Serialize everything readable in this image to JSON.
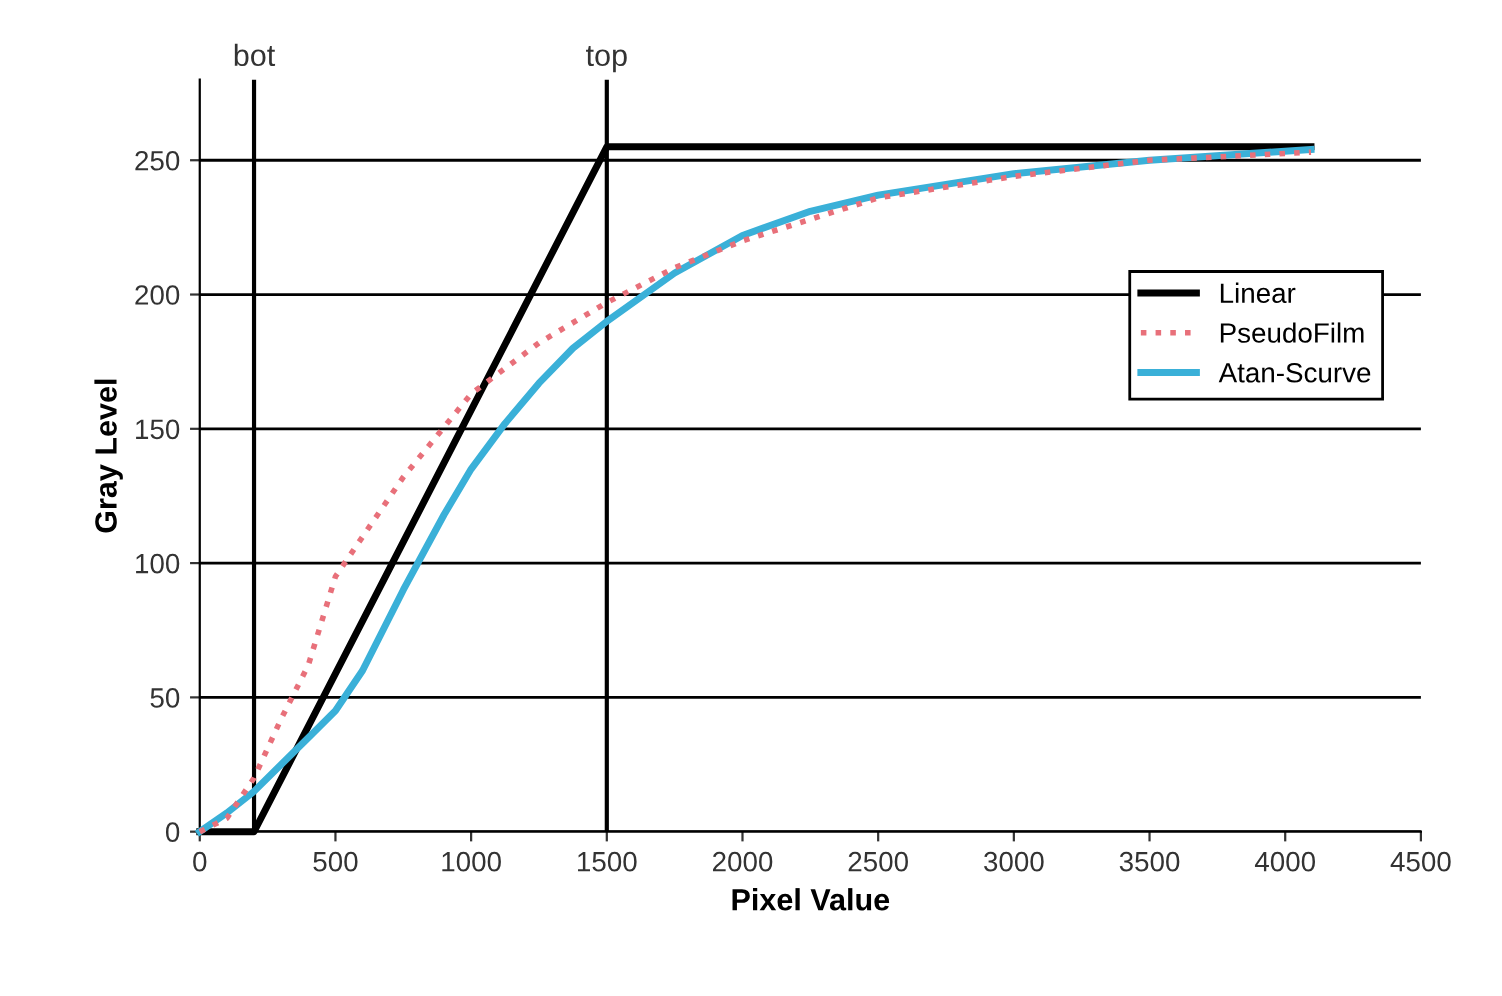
{
  "chart_data": {
    "type": "line",
    "xlabel": "Pixel Value",
    "ylabel": "Gray Level",
    "xlim": [
      0,
      4500
    ],
    "xticks": [
      0,
      500,
      1000,
      1500,
      2000,
      2500,
      3000,
      3500,
      4000,
      4500
    ],
    "ylim": [
      0,
      280
    ],
    "yticks": [
      0,
      50,
      100,
      150,
      200,
      250
    ],
    "grid": "y",
    "legend": "right",
    "series": [
      {
        "name": "Linear",
        "color": "#000000",
        "line_style": "solid",
        "x": [
          0,
          200,
          1500,
          4095
        ],
        "values": [
          0,
          0,
          255,
          255
        ]
      },
      {
        "name": "PseudoFilm",
        "color": "#e8707a",
        "line_style": "dotted",
        "x": [
          0,
          100,
          200,
          300,
          400,
          500,
          750,
          1000,
          1250,
          1500,
          1750,
          2000,
          2500,
          3000,
          3500,
          4095
        ],
        "values": [
          0,
          5,
          20,
          42,
          62,
          95,
          132,
          163,
          182,
          197,
          210,
          220,
          236,
          244,
          250,
          253
        ]
      },
      {
        "name": "Atan-Scurve",
        "color": "#3ab0d8",
        "line_style": "solid",
        "x": [
          0,
          100,
          200,
          300,
          400,
          500,
          600,
          750,
          900,
          1000,
          1125,
          1250,
          1375,
          1500,
          1750,
          2000,
          2250,
          2500,
          3000,
          3500,
          4095
        ],
        "values": [
          0,
          7,
          15,
          25,
          35,
          45,
          60,
          90,
          118,
          135,
          152,
          167,
          180,
          190,
          208,
          222,
          231,
          237,
          245,
          250,
          254
        ]
      }
    ],
    "ref_lines": [
      {
        "axis": "x",
        "value": 200,
        "label": "bot",
        "color": "#000000"
      },
      {
        "axis": "x",
        "value": 1500,
        "label": "top",
        "color": "#000000"
      }
    ]
  }
}
